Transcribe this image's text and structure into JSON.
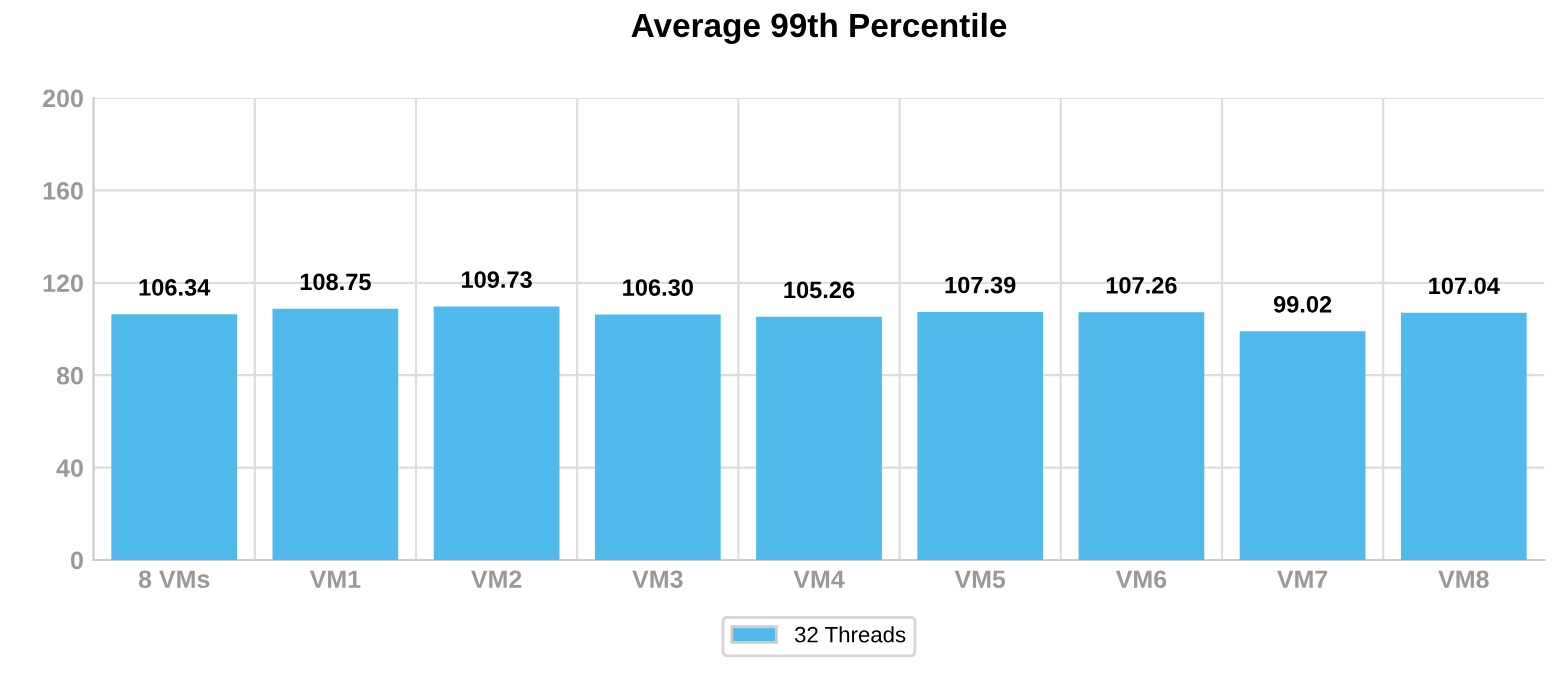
{
  "chart_data": {
    "type": "bar",
    "title": "Average 99th Percentile",
    "categories": [
      "8 VMs",
      "VM1",
      "VM2",
      "VM3",
      "VM4",
      "VM5",
      "VM6",
      "VM7",
      "VM8"
    ],
    "series": [
      {
        "name": "32 Threads",
        "color": "#4fbaeb",
        "values": [
          106.34,
          108.75,
          109.73,
          106.3,
          105.26,
          107.39,
          107.26,
          99.02,
          107.04
        ],
        "value_labels": [
          "106.34",
          "108.75",
          "109.73",
          "106.30",
          "105.26",
          "107.39",
          "107.26",
          "99.02",
          "107.04"
        ]
      }
    ],
    "ylim": [
      0,
      200
    ],
    "yticks": [
      0,
      40,
      80,
      120,
      160,
      200
    ],
    "grid": true,
    "legend": "bottom"
  }
}
